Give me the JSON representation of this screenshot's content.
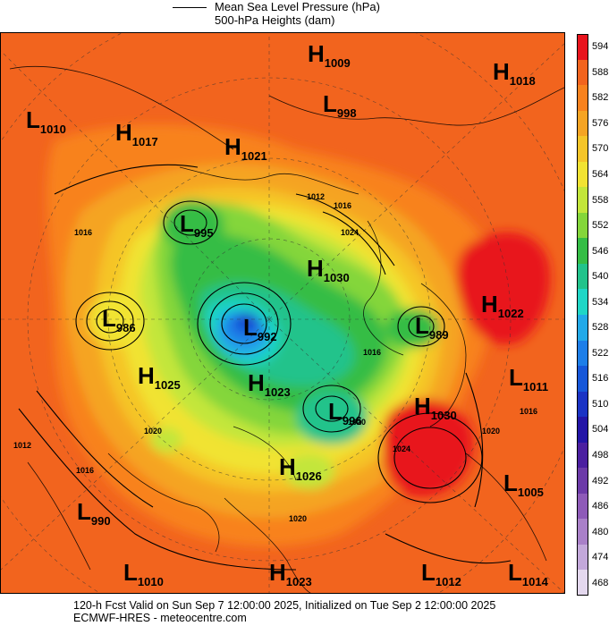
{
  "legend": {
    "line1": "Mean Sea Level Pressure (hPa)",
    "line2": "500-hPa Heights (dam)"
  },
  "colorbar": {
    "labels": [
      "594",
      "588",
      "582",
      "576",
      "570",
      "564",
      "558",
      "552",
      "546",
      "540",
      "534",
      "528",
      "522",
      "516",
      "510",
      "504",
      "498",
      "492",
      "486",
      "480",
      "474",
      "468"
    ],
    "colors": [
      "#e8141d",
      "#f2641e",
      "#f8821e",
      "#f5a423",
      "#f5c528",
      "#f1e332",
      "#c3e63a",
      "#84d63a",
      "#35bd45",
      "#22c38b",
      "#1fd6c6",
      "#22a9e8",
      "#1d7ee8",
      "#1657d9",
      "#1a33c4",
      "#2315a6",
      "#4b1fa0",
      "#6c3aa8",
      "#8e5ab8",
      "#a980c8",
      "#c3a8da",
      "#e4d8ee"
    ]
  },
  "centers": [
    {
      "type": "H",
      "value": "1009"
    },
    {
      "type": "H",
      "value": "1018"
    },
    {
      "type": "L",
      "value": "998"
    },
    {
      "type": "L",
      "value": "1010"
    },
    {
      "type": "H",
      "value": "1017"
    },
    {
      "type": "H",
      "value": "1021"
    },
    {
      "type": "L",
      "value": "995"
    },
    {
      "type": "H",
      "value": "1030"
    },
    {
      "type": "H",
      "value": "1022"
    },
    {
      "type": "L",
      "value": "986"
    },
    {
      "type": "L",
      "value": "992"
    },
    {
      "type": "L",
      "value": "989"
    },
    {
      "type": "H",
      "value": "1025"
    },
    {
      "type": "H",
      "value": "1023"
    },
    {
      "type": "L",
      "value": "996"
    },
    {
      "type": "H",
      "value": "1030"
    },
    {
      "type": "L",
      "value": "1011"
    },
    {
      "type": "H",
      "value": "1026"
    },
    {
      "type": "L",
      "value": "1005"
    },
    {
      "type": "L",
      "value": "990"
    },
    {
      "type": "L",
      "value": "1010"
    },
    {
      "type": "H",
      "value": "1023"
    },
    {
      "type": "L",
      "value": "1012"
    },
    {
      "type": "L",
      "value": "1014"
    }
  ],
  "isobar_labels": [
    "1012",
    "1016",
    "1024",
    "1016",
    "1012",
    "1016",
    "1020",
    "1016",
    "1020",
    "1020",
    "1024",
    "1020",
    "1016"
  ],
  "footer": {
    "line1": "120-h Fcst Valid on Sun Sep  7 12:00:00 2025, Initialized on Tue Sep  2 12:00:00 2025",
    "line2": "ECMWF-HRES  - meteocentre.com"
  }
}
